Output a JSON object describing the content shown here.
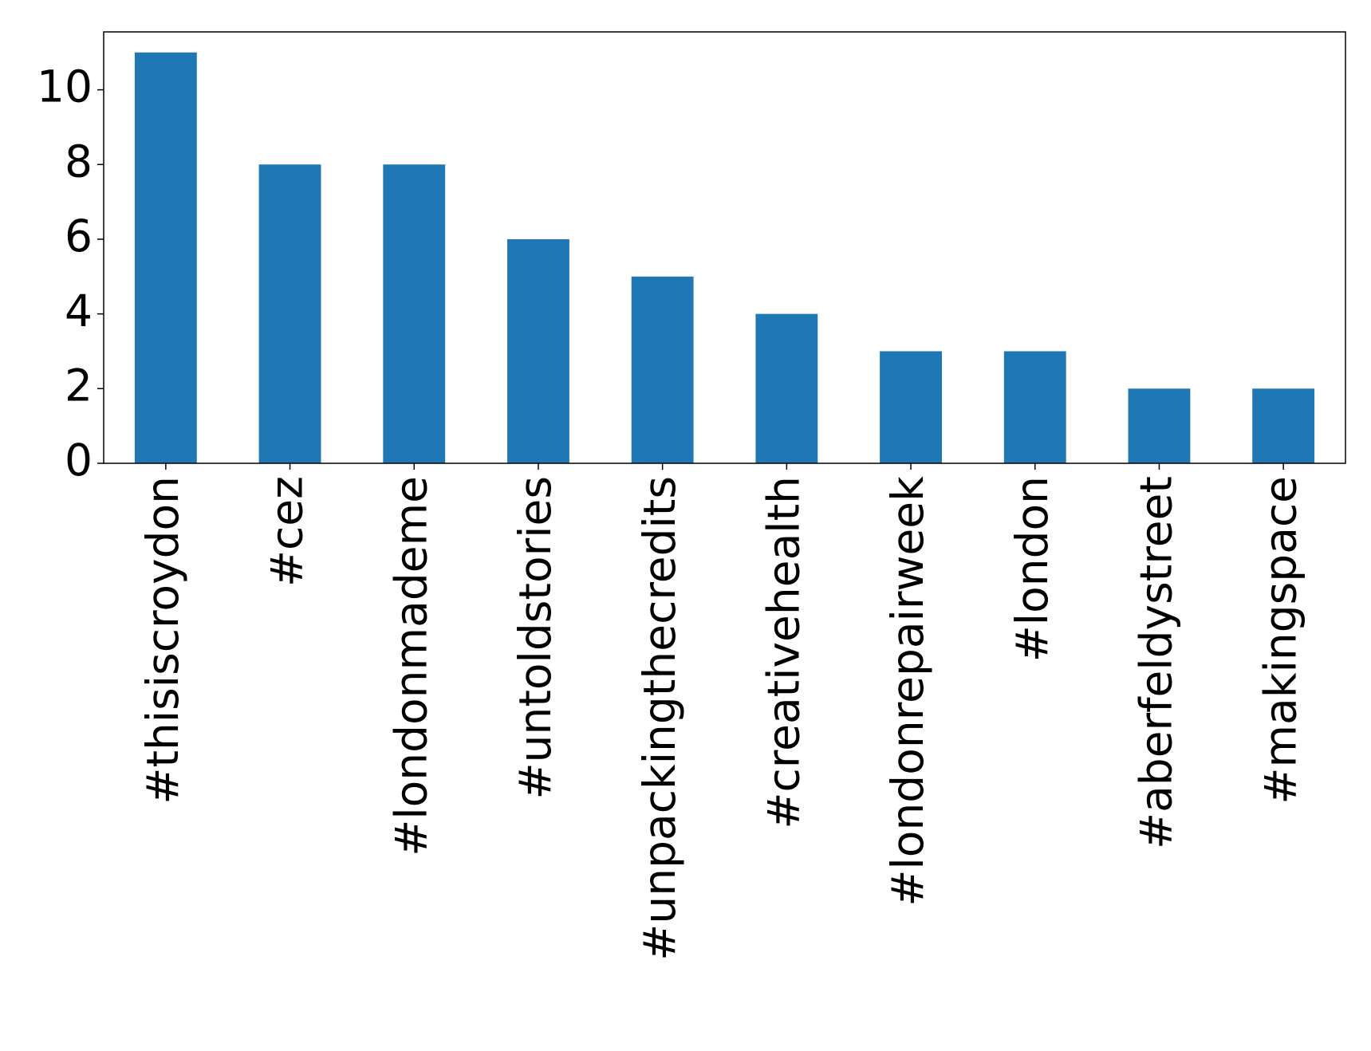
{
  "chart_data": {
    "type": "bar",
    "categories": [
      "#thisiscroydon",
      "#cez",
      "#londonmademe",
      "#untoldstories",
      "#unpackingthecredits",
      "#creativehealth",
      "#londonrepairweek",
      "#london",
      "#aberfeldystreet",
      "#makingspace"
    ],
    "values": [
      11,
      8,
      8,
      6,
      5,
      4,
      3,
      3,
      2,
      2
    ],
    "color": "#1f77b4",
    "ylim": [
      0,
      11.55
    ],
    "yticks": [
      0,
      2,
      4,
      6,
      8,
      10
    ],
    "grid": false
  }
}
